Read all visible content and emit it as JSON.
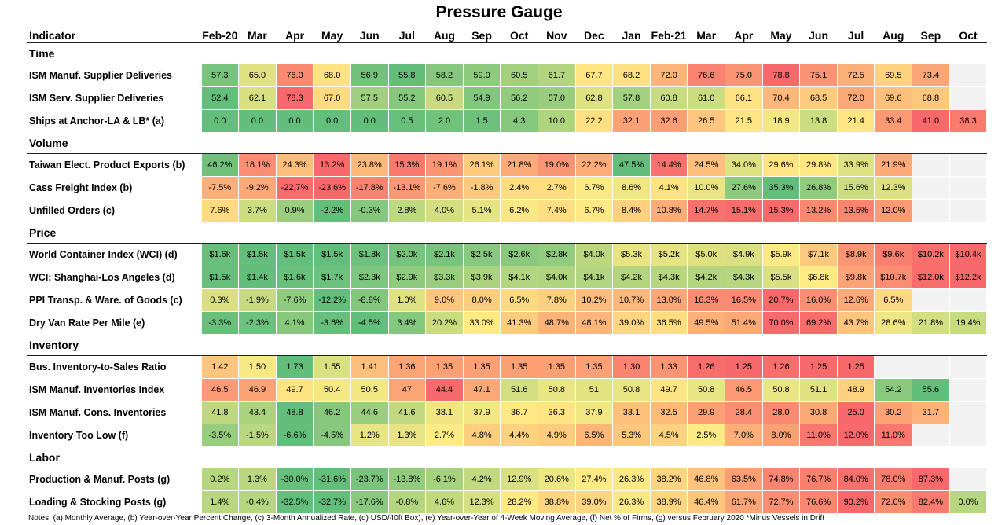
{
  "title": "Pressure Gauge",
  "header_label": "Indicator",
  "columns": [
    "Feb-20",
    "Mar",
    "Apr",
    "May",
    "Jun",
    "Jul",
    "Aug",
    "Sep",
    "Oct",
    "Nov",
    "Dec",
    "Jan",
    "Feb-21",
    "Mar",
    "Apr",
    "May",
    "Jun",
    "Jul",
    "Aug",
    "Sep",
    "Oct"
  ],
  "sections": [
    {
      "name": "Time",
      "rows": [
        {
          "label": "ISM Manuf. Supplier Deliveries",
          "high_is": "red",
          "cells": [
            "57.3",
            "65.0",
            "76.0",
            "68.0",
            "56.9",
            "55.8",
            "58.2",
            "59.0",
            "60.5",
            "61.7",
            "67.7",
            "68.2",
            "72.0",
            "76.6",
            "75.0",
            "78.8",
            "75.1",
            "72.5",
            "69.5",
            "73.4",
            null
          ]
        },
        {
          "label": "ISM Serv. Supplier Deliveries",
          "high_is": "red",
          "cells": [
            "52.4",
            "62.1",
            "78.3",
            "67.0",
            "57.5",
            "55.2",
            "60.5",
            "54.9",
            "56.2",
            "57.0",
            "62.8",
            "57.8",
            "60.8",
            "61.0",
            "66.1",
            "70.4",
            "68.5",
            "72.0",
            "69.6",
            "68.8",
            null
          ]
        },
        {
          "label": "Ships at Anchor-LA & LB* (a)",
          "high_is": "red",
          "cells": [
            "0.0",
            "0.0",
            "0.0",
            "0.0",
            "0.0",
            "0.5",
            "2.0",
            "1.5",
            "4.3",
            "10.0",
            "22.2",
            "32.1",
            "32.6",
            "26.5",
            "21.5",
            "18.9",
            "13.8",
            "21.4",
            "33.4",
            "41.0",
            "38.3"
          ]
        }
      ]
    },
    {
      "name": "Volume",
      "rows": [
        {
          "label": "Taiwan Elect. Product Exports (b)",
          "high_is": "green",
          "cells": [
            "46.2%",
            "18.1%",
            "24.3%",
            "13.2%",
            "23.8%",
            "15.3%",
            "19.1%",
            "26.1%",
            "21.8%",
            "19.0%",
            "22.2%",
            "47.5%",
            "14.4%",
            "24.5%",
            "34.0%",
            "29.6%",
            "29.8%",
            "33.9%",
            "21.9%",
            null,
            null
          ]
        },
        {
          "label": "Cass Freight Index (b)",
          "high_is": "green",
          "cells": [
            "-7.5%",
            "-9.2%",
            "-22.7%",
            "-23.6%",
            "-17.8%",
            "-13.1%",
            "-7.6%",
            "-1.8%",
            "2.4%",
            "2.7%",
            "6.7%",
            "8.6%",
            "4.1%",
            "10.0%",
            "27.6%",
            "35.3%",
            "26.8%",
            "15.6%",
            "12.3%",
            null,
            null
          ]
        },
        {
          "label": "Unfilled Orders (c)",
          "high_is": "red",
          "cells": [
            "7.6%",
            "3.7%",
            "0.9%",
            "-2.2%",
            "-0.3%",
            "2.8%",
            "4.0%",
            "5.1%",
            "6.2%",
            "7.4%",
            "6.7%",
            "8.4%",
            "10.8%",
            "14.7%",
            "15.1%",
            "15.3%",
            "13.2%",
            "13.5%",
            "12.0%",
            null,
            null
          ]
        }
      ]
    },
    {
      "name": "Price",
      "rows": [
        {
          "label": "World Container Index (WCI) (d)",
          "high_is": "red",
          "cells": [
            "$1.6k",
            "$1.5k",
            "$1.5k",
            "$1.5k",
            "$1.8k",
            "$2.0k",
            "$2.1k",
            "$2.5k",
            "$2.6k",
            "$2.8k",
            "$4.0k",
            "$5.3k",
            "$5.2k",
            "$5.0k",
            "$4.9k",
            "$5.9k",
            "$7.1k",
            "$8.9k",
            "$9.6k",
            "$10.2k",
            "$10.4k"
          ]
        },
        {
          "label": "WCI: Shanghai-Los Angeles (d)",
          "high_is": "red",
          "cells": [
            "$1.5k",
            "$1.4k",
            "$1.6k",
            "$1.7k",
            "$2.3k",
            "$2.9k",
            "$3.3k",
            "$3.9k",
            "$4.1k",
            "$4.0k",
            "$4.1k",
            "$4.2k",
            "$4.3k",
            "$4.2k",
            "$4.3k",
            "$5.5k",
            "$6.8k",
            "$9.8k",
            "$10.7k",
            "$12.0k",
            "$12.2k"
          ]
        },
        {
          "label": "PPI Transp. & Ware. of Goods (c)",
          "high_is": "red",
          "cells": [
            "0.3%",
            "-1.9%",
            "-7.6%",
            "-12.2%",
            "-8.8%",
            "1.0%",
            "9.0%",
            "8.0%",
            "6.5%",
            "7.8%",
            "10.2%",
            "10.7%",
            "13.0%",
            "16.3%",
            "16.5%",
            "20.7%",
            "16.0%",
            "12.6%",
            "6.5%",
            null,
            null
          ]
        },
        {
          "label": "Dry Van Rate Per Mile (e)",
          "high_is": "red",
          "cells": [
            "-3.3%",
            "-2.3%",
            "4.1%",
            "-3.6%",
            "-4.5%",
            "3.4%",
            "20.2%",
            "33.0%",
            "41.3%",
            "48.7%",
            "48.1%",
            "39.0%",
            "36.5%",
            "49.5%",
            "51.4%",
            "70.0%",
            "69.2%",
            "43.7%",
            "28.6%",
            "21.8%",
            "19.4%"
          ]
        }
      ]
    },
    {
      "name": "Inventory",
      "rows": [
        {
          "label": "Bus. Inventory-to-Sales Ratio",
          "high_is": "green",
          "cells": [
            "1.42",
            "1.50",
            "1.73",
            "1.55",
            "1.41",
            "1.36",
            "1.35",
            "1.35",
            "1.35",
            "1.35",
            "1.35",
            "1.30",
            "1.33",
            "1.26",
            "1.25",
            "1.26",
            "1.25",
            "1.25",
            null,
            null,
            null
          ]
        },
        {
          "label": "ISM Manuf. Inventories Index",
          "high_is": "green",
          "cells": [
            "46.5",
            "46.9",
            "49.7",
            "50.4",
            "50.5",
            "47",
            "44.4",
            "47.1",
            "51.6",
            "50.8",
            "51",
            "50.8",
            "49.7",
            "50.8",
            "46.5",
            "50.8",
            "51.1",
            "48.9",
            "54.2",
            "55.6",
            null
          ]
        },
        {
          "label": "ISM Manuf. Cons. Inventories",
          "high_is": "green",
          "cells": [
            "41.8",
            "43.4",
            "48.8",
            "46.2",
            "44.6",
            "41.6",
            "38.1",
            "37.9",
            "36.7",
            "36.3",
            "37.9",
            "33.1",
            "32.5",
            "29.9",
            "28.4",
            "28.0",
            "30.8",
            "25.0",
            "30.2",
            "31.7",
            null
          ]
        },
        {
          "label": "Inventory Too Low (f)",
          "high_is": "red",
          "cells": [
            "-3.5%",
            "-1.5%",
            "-6.6%",
            "-4.5%",
            "1.2%",
            "1.3%",
            "2.7%",
            "4.8%",
            "4.4%",
            "4.9%",
            "6.5%",
            "5.3%",
            "4.5%",
            "2.5%",
            "7.0%",
            "8.0%",
            "11.0%",
            "12.0%",
            "11.0%",
            null,
            null
          ]
        }
      ]
    },
    {
      "name": "Labor",
      "rows": [
        {
          "label": "Production & Manuf. Posts (g)",
          "high_is": "red",
          "cells": [
            "0.2%",
            "1.3%",
            "-30.0%",
            "-31.6%",
            "-23.7%",
            "-13.8%",
            "-6.1%",
            "4.2%",
            "12.9%",
            "20.6%",
            "27.4%",
            "26.3%",
            "38.2%",
            "46.8%",
            "63.5%",
            "74.8%",
            "76.7%",
            "84.0%",
            "78.0%",
            "87.3%",
            null
          ]
        },
        {
          "label": "Loading & Stocking Posts (g)",
          "high_is": "red",
          "cells": [
            "1.4%",
            "-0.4%",
            "-32.5%",
            "-32.7%",
            "-17.6%",
            "-0.8%",
            "4.6%",
            "12.3%",
            "28.2%",
            "38.8%",
            "39.0%",
            "26.3%",
            "38.9%",
            "46.4%",
            "61.7%",
            "72.7%",
            "76.6%",
            "90.2%",
            "72.0%",
            "82.4%",
            "0.0%"
          ]
        }
      ]
    }
  ],
  "notes": "Notes: (a) Monthly Average, (b) Year-over-Year Percent Change, (c) 3-Month Annualized Rate, (d) USD/40ft Box), (e) Year-over-Year of 4-Week Moving Average, (f) Net % of Firms, (g) versus February 2020 *Minus Vessels in Drift"
}
